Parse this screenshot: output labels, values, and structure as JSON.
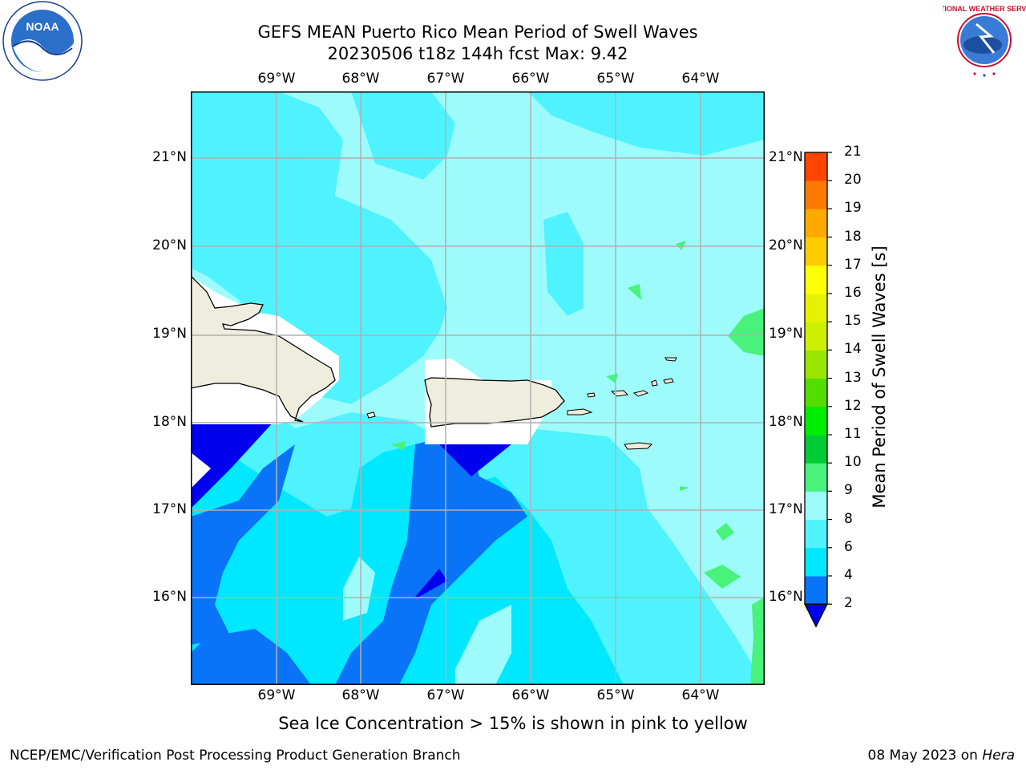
{
  "title_line1": "GEFS MEAN Puerto Rico Mean Period of Swell Waves",
  "title_line2": "20230506 t18z 144h fcst   Max: 9.42",
  "lon_labels": [
    "69°W",
    "68°W",
    "67°W",
    "66°W",
    "65°W",
    "64°W"
  ],
  "lat_labels": [
    "21°N",
    "20°N",
    "19°N",
    "18°N",
    "17°N",
    "16°N"
  ],
  "colorbar": {
    "label": "Mean Period of Swell Waves [s]",
    "ticks": [
      "2",
      "4",
      "6",
      "8",
      "9",
      "10",
      "11",
      "12",
      "13",
      "14",
      "15",
      "16",
      "17",
      "18",
      "19",
      "20",
      "21"
    ],
    "colors": [
      "#0a74f8",
      "#00e8ff",
      "#4ff3ff",
      "#9dfcfb",
      "#48f27b",
      "#00cc33",
      "#00ee00",
      "#55dd00",
      "#99e600",
      "#ccf000",
      "#e6f200",
      "#ffff00",
      "#ffcc00",
      "#ffaa00",
      "#ff7a00",
      "#ff4500",
      "#ff1a00",
      "#ff0000"
    ],
    "under_color": "#0000ee"
  },
  "note": "Sea Ice Concentration > 15% is shown in pink to yellow",
  "footer_left": "NCEP/EMC/Verification Post Processing Product Generation Branch",
  "footer_right_prefix": "08 May 2023 on ",
  "footer_right_host": "Hera",
  "colors": {
    "land": "#efedde",
    "light_cyan": "#9dfcfb",
    "cyan": "#4ff3ff",
    "aqua": "#00e8ff",
    "blue": "#0a74f8",
    "deep_blue": "#0000ee",
    "green": "#48f27b",
    "grid": "#b0b0b0"
  },
  "logos": {
    "noaa_text": "NOAA",
    "nws_text": "NATIONAL WEATHER SERVICE"
  }
}
